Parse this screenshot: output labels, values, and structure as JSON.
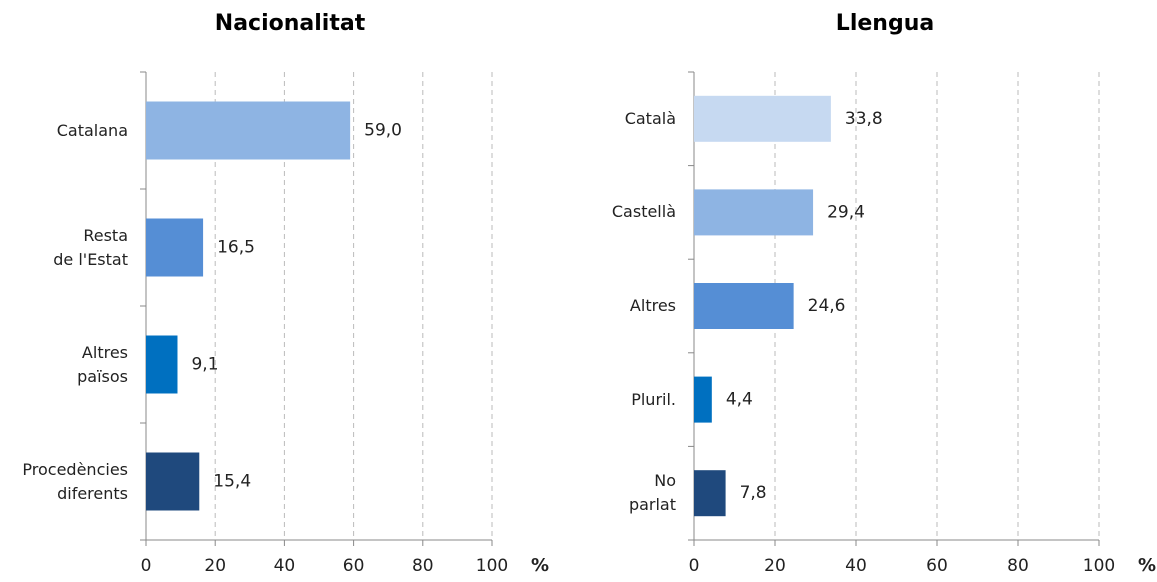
{
  "chart_data": [
    {
      "type": "bar",
      "orientation": "horizontal",
      "title": "Nacionalitat",
      "categories": [
        "Catalana",
        "Resta\nde l'Estat",
        "Altres\npaïsos",
        "Procedències\ndiferents"
      ],
      "values": [
        59.0,
        16.5,
        9.1,
        15.4
      ],
      "value_labels": [
        "59,0",
        "16,5",
        "9,1",
        "15,4"
      ],
      "colors": [
        "#8eb4e3",
        "#558ed5",
        "#0070c0",
        "#1f497d"
      ],
      "xlim": [
        0,
        100
      ],
      "xticks": [
        0,
        20,
        40,
        60,
        80,
        100
      ],
      "x_label": "%",
      "grid": true
    },
    {
      "type": "bar",
      "orientation": "horizontal",
      "title": "Llengua",
      "categories": [
        "Català",
        "Castellà",
        "Altres",
        "Pluril.",
        "No\nparlat"
      ],
      "values": [
        33.8,
        29.4,
        24.6,
        4.4,
        7.8
      ],
      "value_labels": [
        "33,8",
        "29,4",
        "24,6",
        "4,4",
        "7,8"
      ],
      "colors": [
        "#c6d9f1",
        "#8eb4e3",
        "#558ed5",
        "#0070c0",
        "#1f497d"
      ],
      "xlim": [
        0,
        100
      ],
      "xticks": [
        0,
        20,
        40,
        60,
        80,
        100
      ],
      "x_label": "%",
      "grid": true
    }
  ]
}
